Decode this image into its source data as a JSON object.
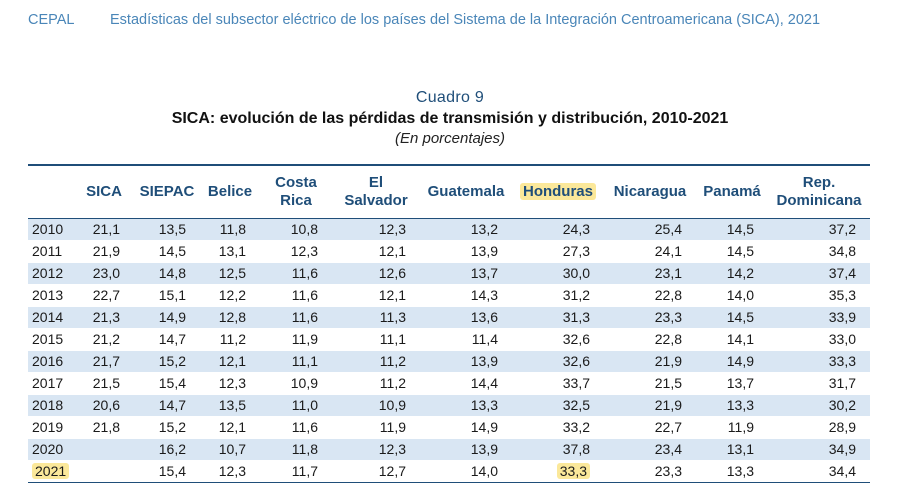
{
  "header": {
    "org": "CEPAL",
    "publication": "Estadísticas del subsector eléctrico de los países del Sistema de la Integración Centroamericana (SICA), 2021"
  },
  "table_title": {
    "number": "Cuadro 9",
    "title": "SICA: evolución de las pérdidas de transmisión y distribución, 2010-2021",
    "subtitle": "(En porcentajes)"
  },
  "columns": [
    {
      "line1": "",
      "line2": ""
    },
    {
      "line1": "SICA",
      "line2": ""
    },
    {
      "line1": "SIEPAC",
      "line2": ""
    },
    {
      "line1": "Belice",
      "line2": ""
    },
    {
      "line1": "Costa",
      "line2": "Rica"
    },
    {
      "line1": "El",
      "line2": "Salvador"
    },
    {
      "line1": "Guatemala",
      "line2": ""
    },
    {
      "line1": "Honduras",
      "line2": ""
    },
    {
      "line1": "Nicaragua",
      "line2": ""
    },
    {
      "line1": "Panamá",
      "line2": ""
    },
    {
      "line1": "Rep.",
      "line2": "Dominicana"
    }
  ],
  "rows": [
    [
      "2010",
      "21,1",
      "13,5",
      "11,8",
      "10,8",
      "12,3",
      "13,2",
      "24,3",
      "25,4",
      "14,5",
      "37,2"
    ],
    [
      "2011",
      "21,9",
      "14,5",
      "13,1",
      "12,3",
      "12,1",
      "13,9",
      "27,3",
      "24,1",
      "14,5",
      "34,8"
    ],
    [
      "2012",
      "23,0",
      "14,8",
      "12,5",
      "11,6",
      "12,6",
      "13,7",
      "30,0",
      "23,1",
      "14,2",
      "37,4"
    ],
    [
      "2013",
      "22,7",
      "15,1",
      "12,2",
      "11,6",
      "12,1",
      "14,3",
      "31,2",
      "22,8",
      "14,0",
      "35,3"
    ],
    [
      "2014",
      "21,3",
      "14,9",
      "12,8",
      "11,6",
      "11,3",
      "13,6",
      "31,3",
      "23,3",
      "14,5",
      "33,9"
    ],
    [
      "2015",
      "21,2",
      "14,7",
      "11,2",
      "11,9",
      "11,1",
      "11,4",
      "32,6",
      "22,8",
      "14,1",
      "33,0"
    ],
    [
      "2016",
      "21,7",
      "15,2",
      "12,1",
      "11,1",
      "11,2",
      "13,9",
      "32,6",
      "21,9",
      "14,9",
      "33,3"
    ],
    [
      "2017",
      "21,5",
      "15,4",
      "12,3",
      "10,9",
      "11,2",
      "14,4",
      "33,7",
      "21,5",
      "13,7",
      "31,7"
    ],
    [
      "2018",
      "20,6",
      "14,7",
      "13,5",
      "11,0",
      "10,9",
      "13,3",
      "32,5",
      "21,9",
      "13,3",
      "30,2"
    ],
    [
      "2019",
      "21,8",
      "15,2",
      "12,1",
      "11,6",
      "11,9",
      "14,9",
      "33,2",
      "22,7",
      "11,9",
      "28,9"
    ],
    [
      "2020",
      "",
      "16,2",
      "10,7",
      "11,8",
      "12,3",
      "13,9",
      "37,8",
      "23,4",
      "13,1",
      "34,9"
    ],
    [
      "2021",
      "",
      "15,4",
      "12,3",
      "11,7",
      "12,7",
      "14,0",
      "33,3",
      "23,3",
      "13,3",
      "34,4"
    ]
  ],
  "highlights": [
    {
      "row": -1,
      "col": 7
    },
    {
      "row": 11,
      "col": 0
    },
    {
      "row": 11,
      "col": 7
    }
  ],
  "colors": {
    "header_blue": "#4a86b8",
    "dark_blue": "#1f4e79",
    "stripe": "#d9e6f3",
    "highlight": "#fbe89a"
  }
}
